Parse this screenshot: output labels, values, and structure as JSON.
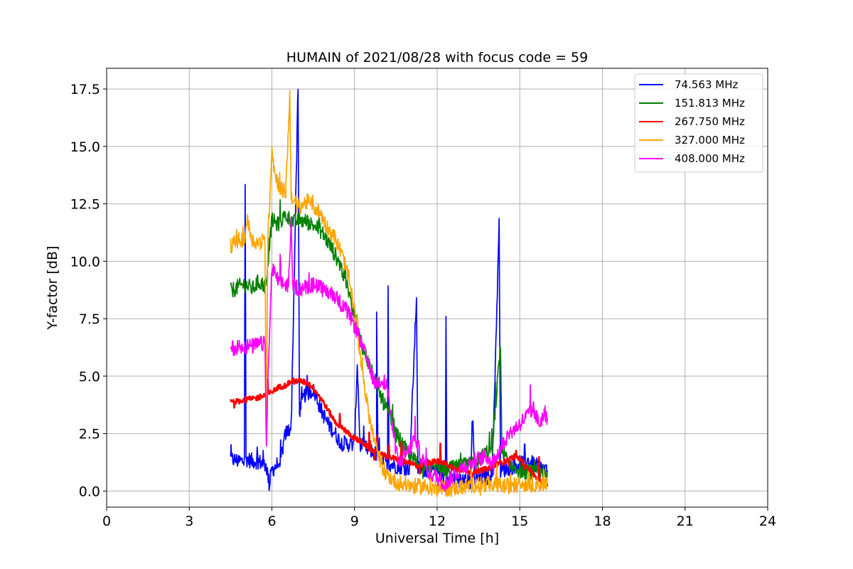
{
  "chart_data": {
    "type": "line",
    "title": "HUMAIN of 2021/08/28 with focus code = 59",
    "xlabel": "Universal Time [h]",
    "ylabel": "Y-factor [dB]",
    "xlim": [
      0,
      24
    ],
    "ylim": [
      -0.7,
      18.4
    ],
    "xticks": [
      0,
      3,
      6,
      9,
      12,
      15,
      18,
      21,
      24
    ],
    "xtick_labels": [
      "0",
      "3",
      "6",
      "9",
      "12",
      "15",
      "18",
      "21",
      "24"
    ],
    "yticks": [
      0.0,
      2.5,
      5.0,
      7.5,
      10.0,
      12.5,
      15.0,
      17.5
    ],
    "ytick_labels": [
      "0.0",
      "2.5",
      "5.0",
      "7.5",
      "10.0",
      "12.5",
      "15.0",
      "17.5"
    ],
    "grid": true,
    "legend_position": "top-right",
    "series": [
      {
        "name": " 74.563 MHz",
        "color": "#0000ff",
        "points": [
          [
            4.5,
            1.4
          ],
          [
            4.8,
            1.3
          ],
          [
            5.0,
            1.3
          ],
          [
            5.03,
            13.4
          ],
          [
            5.06,
            1.4
          ],
          [
            5.3,
            1.3
          ],
          [
            5.5,
            1.3
          ],
          [
            5.8,
            1.1
          ],
          [
            5.9,
            0.3
          ],
          [
            6.0,
            0.9
          ],
          [
            6.3,
            1.3
          ],
          [
            6.5,
            2.5
          ],
          [
            6.7,
            2.8
          ],
          [
            6.95,
            17.5
          ],
          [
            7.0,
            3.5
          ],
          [
            7.2,
            4.2
          ],
          [
            7.5,
            4.4
          ],
          [
            7.8,
            3.5
          ],
          [
            8.0,
            3.0
          ],
          [
            8.3,
            2.5
          ],
          [
            8.5,
            2.1
          ],
          [
            9.0,
            2.0
          ],
          [
            9.1,
            5.6
          ],
          [
            9.2,
            2.0
          ],
          [
            9.5,
            1.8
          ],
          [
            9.8,
            1.6
          ],
          [
            9.8,
            7.9
          ],
          [
            9.85,
            1.5
          ],
          [
            10.0,
            1.4
          ],
          [
            10.2,
            1.2
          ],
          [
            10.22,
            9.2
          ],
          [
            10.25,
            1.2
          ],
          [
            10.5,
            1.1
          ],
          [
            11.0,
            1.0
          ],
          [
            11.25,
            8.5
          ],
          [
            11.3,
            1.0
          ],
          [
            11.8,
            0.9
          ],
          [
            12.3,
            0.7
          ],
          [
            12.32,
            7.5
          ],
          [
            12.35,
            0.6
          ],
          [
            12.8,
            0.5
          ],
          [
            13.2,
            0.4
          ],
          [
            13.3,
            3.2
          ],
          [
            13.35,
            0.5
          ],
          [
            13.8,
            0.6
          ],
          [
            14.0,
            0.8
          ],
          [
            14.25,
            11.6
          ],
          [
            14.3,
            0.9
          ],
          [
            14.6,
            1.0
          ],
          [
            15.0,
            1.2
          ],
          [
            15.3,
            1.3
          ],
          [
            15.6,
            1.1
          ],
          [
            16.0,
            0.9
          ]
        ]
      },
      {
        "name": "151.813 MHz",
        "color": "#008000",
        "points": [
          [
            4.5,
            8.7
          ],
          [
            4.8,
            8.9
          ],
          [
            5.0,
            9.0
          ],
          [
            5.3,
            8.8
          ],
          [
            5.5,
            9.1
          ],
          [
            5.8,
            8.9
          ],
          [
            5.9,
            10.6
          ],
          [
            6.0,
            11.8
          ],
          [
            6.2,
            11.6
          ],
          [
            6.5,
            12.0
          ],
          [
            6.8,
            11.7
          ],
          [
            7.0,
            11.8
          ],
          [
            7.3,
            11.7
          ],
          [
            7.6,
            11.5
          ],
          [
            7.8,
            11.3
          ],
          [
            8.0,
            10.9
          ],
          [
            8.2,
            10.5
          ],
          [
            8.5,
            9.8
          ],
          [
            8.8,
            8.6
          ],
          [
            9.0,
            7.7
          ],
          [
            9.2,
            6.6
          ],
          [
            9.5,
            5.6
          ],
          [
            9.8,
            4.6
          ],
          [
            10.0,
            4.0
          ],
          [
            10.3,
            3.2
          ],
          [
            10.5,
            2.5
          ],
          [
            10.8,
            1.9
          ],
          [
            11.0,
            1.5
          ],
          [
            11.3,
            1.2
          ],
          [
            11.6,
            1.1
          ],
          [
            12.0,
            1.0
          ],
          [
            12.3,
            0.9
          ],
          [
            12.6,
            1.0
          ],
          [
            13.0,
            1.1
          ],
          [
            13.4,
            1.2
          ],
          [
            13.7,
            1.6
          ],
          [
            14.0,
            1.9
          ],
          [
            14.3,
            6.4
          ],
          [
            14.35,
            1.8
          ],
          [
            14.6,
            1.2
          ],
          [
            15.0,
            0.9
          ],
          [
            15.4,
            0.8
          ],
          [
            15.8,
            0.7
          ],
          [
            16.0,
            0.6
          ]
        ]
      },
      {
        "name": "267.750 MHz",
        "color": "#ff0000",
        "points": [
          [
            4.5,
            3.9
          ],
          [
            4.8,
            3.9
          ],
          [
            5.0,
            4.0
          ],
          [
            5.3,
            4.0
          ],
          [
            5.6,
            4.1
          ],
          [
            5.8,
            4.2
          ],
          [
            6.0,
            4.3
          ],
          [
            6.2,
            4.5
          ],
          [
            6.5,
            4.6
          ],
          [
            6.7,
            4.8
          ],
          [
            7.0,
            4.8
          ],
          [
            7.3,
            4.7
          ],
          [
            7.5,
            4.5
          ],
          [
            7.8,
            4.0
          ],
          [
            8.0,
            3.6
          ],
          [
            8.3,
            3.0
          ],
          [
            8.5,
            2.8
          ],
          [
            8.8,
            2.5
          ],
          [
            9.0,
            2.3
          ],
          [
            9.3,
            2.1
          ],
          [
            9.6,
            1.8
          ],
          [
            9.9,
            1.6
          ],
          [
            10.2,
            1.5
          ],
          [
            10.5,
            1.4
          ],
          [
            10.8,
            1.3
          ],
          [
            11.0,
            1.2
          ],
          [
            11.3,
            1.1
          ],
          [
            11.6,
            1.2
          ],
          [
            12.0,
            1.3
          ],
          [
            12.3,
            1.2
          ],
          [
            12.6,
            1.0
          ],
          [
            13.0,
            0.9
          ],
          [
            13.3,
            0.8
          ],
          [
            13.6,
            0.9
          ],
          [
            13.9,
            1.0
          ],
          [
            14.2,
            1.2
          ],
          [
            14.5,
            1.3
          ],
          [
            14.8,
            1.5
          ],
          [
            15.0,
            1.4
          ],
          [
            15.3,
            1.0
          ],
          [
            15.6,
            0.6
          ],
          [
            15.8,
            0.4
          ],
          [
            16.0,
            0.2
          ]
        ]
      },
      {
        "name": "327.000 MHz",
        "color": "#ffa500",
        "points": [
          [
            4.5,
            10.7
          ],
          [
            4.8,
            10.9
          ],
          [
            5.0,
            11.0
          ],
          [
            5.1,
            11.8
          ],
          [
            5.3,
            10.9
          ],
          [
            5.5,
            10.8
          ],
          [
            5.75,
            10.9
          ],
          [
            5.8,
            2.0
          ],
          [
            5.85,
            10.8
          ],
          [
            6.0,
            15.0
          ],
          [
            6.1,
            13.8
          ],
          [
            6.3,
            13.2
          ],
          [
            6.5,
            13.0
          ],
          [
            6.65,
            17.2
          ],
          [
            6.7,
            13.0
          ],
          [
            6.8,
            12.5
          ],
          [
            7.0,
            12.4
          ],
          [
            7.3,
            12.6
          ],
          [
            7.6,
            12.3
          ],
          [
            7.8,
            12.0
          ],
          [
            8.0,
            11.5
          ],
          [
            8.3,
            11.0
          ],
          [
            8.6,
            10.1
          ],
          [
            8.8,
            9.2
          ],
          [
            9.0,
            7.8
          ],
          [
            9.2,
            6.0
          ],
          [
            9.4,
            4.2
          ],
          [
            9.6,
            2.8
          ],
          [
            9.8,
            1.8
          ],
          [
            10.0,
            1.1
          ],
          [
            10.2,
            0.7
          ],
          [
            10.5,
            0.4
          ],
          [
            10.8,
            0.3
          ],
          [
            11.2,
            0.2
          ],
          [
            11.6,
            0.2
          ],
          [
            12.0,
            0.1
          ],
          [
            12.5,
            0.1
          ],
          [
            13.0,
            0.2
          ],
          [
            13.5,
            0.3
          ],
          [
            14.0,
            0.3
          ],
          [
            14.5,
            0.2
          ],
          [
            15.0,
            0.3
          ],
          [
            15.5,
            0.3
          ],
          [
            16.0,
            0.3
          ]
        ]
      },
      {
        "name": "408.000 MHz",
        "color": "#ff00ff",
        "points": [
          [
            4.5,
            6.2
          ],
          [
            4.8,
            6.3
          ],
          [
            5.0,
            6.3
          ],
          [
            5.3,
            6.3
          ],
          [
            5.6,
            6.4
          ],
          [
            5.75,
            6.4
          ],
          [
            5.8,
            1.8
          ],
          [
            5.9,
            6.5
          ],
          [
            6.0,
            9.7
          ],
          [
            6.2,
            9.2
          ],
          [
            6.4,
            9.0
          ],
          [
            6.6,
            9.0
          ],
          [
            6.7,
            11.8
          ],
          [
            6.75,
            9.0
          ],
          [
            7.0,
            8.8
          ],
          [
            7.3,
            8.9
          ],
          [
            7.6,
            9.0
          ],
          [
            7.8,
            8.8
          ],
          [
            8.0,
            8.7
          ],
          [
            8.3,
            8.5
          ],
          [
            8.6,
            8.0
          ],
          [
            8.8,
            7.7
          ],
          [
            9.0,
            7.2
          ],
          [
            9.2,
            6.6
          ],
          [
            9.4,
            5.9
          ],
          [
            9.6,
            5.1
          ],
          [
            9.8,
            4.7
          ],
          [
            10.0,
            4.9
          ],
          [
            10.2,
            4.5
          ],
          [
            10.4,
            2.5
          ],
          [
            10.6,
            1.2
          ],
          [
            10.8,
            1.5
          ],
          [
            11.0,
            1.8
          ],
          [
            11.2,
            2.4
          ],
          [
            11.4,
            1.5
          ],
          [
            11.7,
            0.8
          ],
          [
            12.0,
            0.6
          ],
          [
            12.3,
            0.3
          ],
          [
            12.6,
            0.7
          ],
          [
            12.9,
            1.0
          ],
          [
            13.2,
            1.2
          ],
          [
            13.5,
            1.4
          ],
          [
            13.8,
            1.5
          ],
          [
            14.0,
            1.2
          ],
          [
            14.3,
            1.9
          ],
          [
            14.6,
            2.5
          ],
          [
            14.9,
            2.8
          ],
          [
            15.2,
            3.2
          ],
          [
            15.5,
            3.6
          ],
          [
            15.7,
            2.9
          ],
          [
            15.9,
            3.4
          ],
          [
            16.0,
            3.2
          ]
        ]
      }
    ]
  }
}
